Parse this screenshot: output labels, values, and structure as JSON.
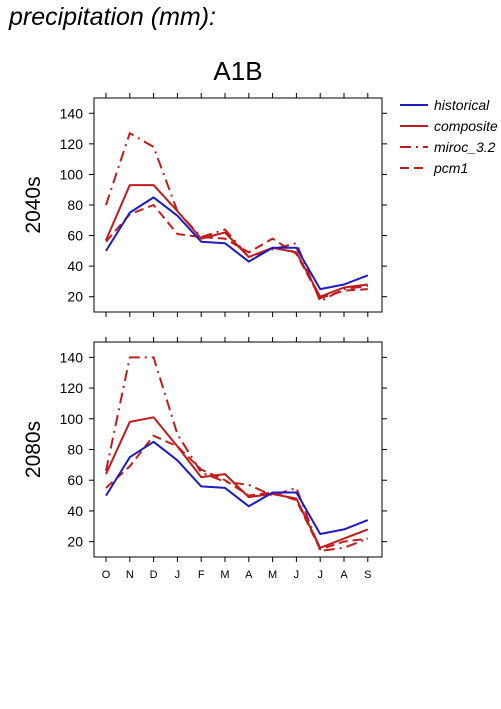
{
  "figure": {
    "title": "precipitation (mm):",
    "scenario": "A1B"
  },
  "colors": {
    "historical": "#1c1cc0",
    "projection": "#c01c1c"
  },
  "chart_data": [
    {
      "type": "line",
      "panel_label": "2040s",
      "categories": [
        "O",
        "N",
        "D",
        "J",
        "F",
        "M",
        "A",
        "M",
        "J",
        "J",
        "A",
        "S"
      ],
      "ylim": [
        10,
        150
      ],
      "yticks": [
        20,
        40,
        60,
        80,
        100,
        120,
        140
      ],
      "grid": false,
      "legend_position": "right",
      "series": [
        {
          "name": "historical",
          "style": "solid",
          "color": "#1c1cc0",
          "values": [
            50,
            75,
            85,
            73,
            56,
            55,
            43,
            52,
            52,
            25,
            28,
            34
          ]
        },
        {
          "name": "composite",
          "style": "solid",
          "color": "#c01c1c",
          "values": [
            57,
            93,
            93,
            76,
            58,
            62,
            46,
            52,
            49,
            20,
            26,
            28
          ]
        },
        {
          "name": "miroc_3.2",
          "style": "dashdot",
          "color": "#c01c1c",
          "values": [
            80,
            127,
            118,
            76,
            59,
            64,
            46,
            51,
            55,
            17,
            25,
            27
          ]
        },
        {
          "name": "pcm1",
          "style": "dashed",
          "color": "#c01c1c",
          "values": [
            56,
            74,
            80,
            61,
            59,
            58,
            49,
            58,
            48,
            19,
            24,
            25
          ]
        }
      ]
    },
    {
      "type": "line",
      "panel_label": "2080s",
      "categories": [
        "O",
        "N",
        "D",
        "J",
        "F",
        "M",
        "A",
        "M",
        "J",
        "J",
        "A",
        "S"
      ],
      "ylim": [
        10,
        150
      ],
      "yticks": [
        20,
        40,
        60,
        80,
        100,
        120,
        140
      ],
      "grid": false,
      "series": [
        {
          "name": "historical",
          "style": "solid",
          "color": "#1c1cc0",
          "values": [
            50,
            75,
            85,
            73,
            56,
            55,
            43,
            52,
            52,
            25,
            28,
            34
          ]
        },
        {
          "name": "composite",
          "style": "solid",
          "color": "#c01c1c",
          "values": [
            64,
            98,
            101,
            82,
            62,
            64,
            49,
            51,
            48,
            16,
            22,
            28
          ]
        },
        {
          "name": "miroc_3.2",
          "style": "dashdot",
          "color": "#c01c1c",
          "values": [
            66,
            140,
            140,
            90,
            65,
            59,
            57,
            50,
            55,
            14,
            16,
            22
          ]
        },
        {
          "name": "pcm1",
          "style": "dashed",
          "color": "#c01c1c",
          "values": [
            55,
            69,
            89,
            82,
            67,
            60,
            50,
            52,
            47,
            15,
            20,
            22
          ]
        }
      ]
    }
  ]
}
